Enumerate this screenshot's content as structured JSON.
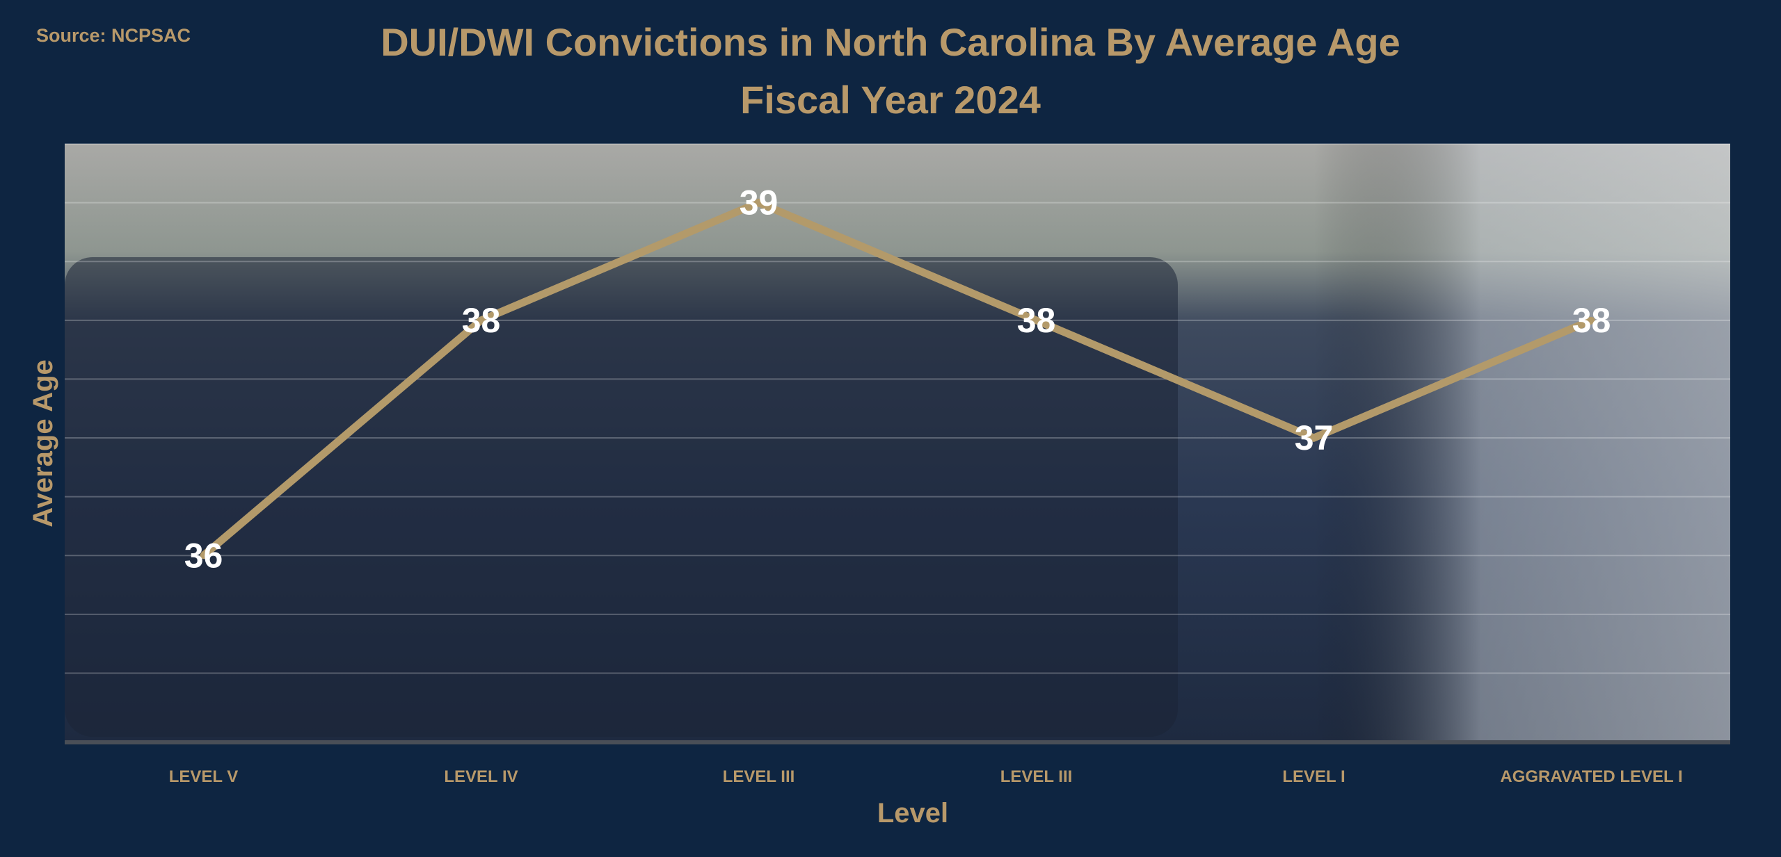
{
  "source": "Source: NCPSAC",
  "chart_data": {
    "type": "line",
    "title": "DUI/DWI Convictions in North Carolina By Average Age",
    "subtitle": "Fiscal Year 2024",
    "xlabel": "Level",
    "ylabel": "Average Age",
    "categories": [
      "LEVEL V",
      "LEVEL IV",
      "LEVEL III",
      "LEVEL III",
      "LEVEL I",
      "AGGRAVATED LEVEL I"
    ],
    "values": [
      36,
      38,
      39,
      38,
      37,
      38
    ],
    "data_labels": [
      "36",
      "38",
      "39",
      "38",
      "37",
      "38"
    ],
    "ylim": [
      34.4,
      39.5
    ],
    "grid": true,
    "legend": "none",
    "colors": {
      "background": "#0e2541",
      "text": "#b8996a",
      "line": "#b39a6a",
      "data_label": "#ffffff"
    }
  }
}
